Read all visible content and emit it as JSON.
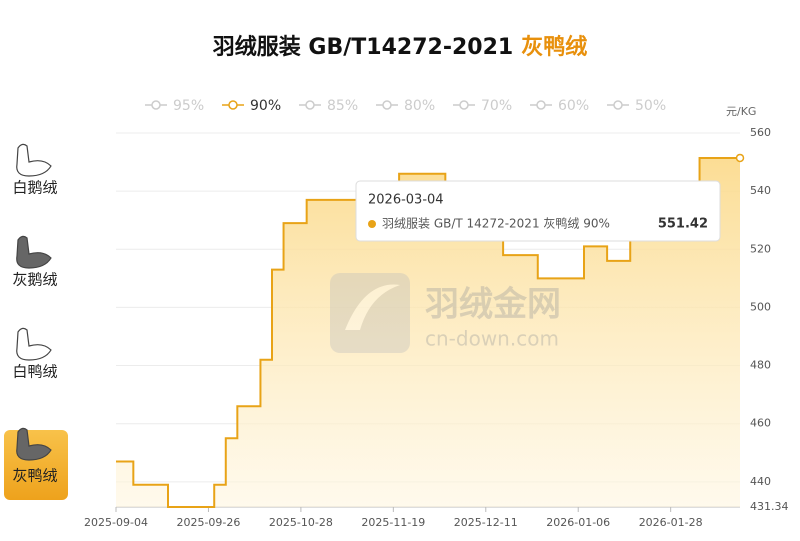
{
  "chart_data": {
    "type": "step",
    "title": "羽绒服装 GB/T14272-2021",
    "title_highlight": "灰鸭绒",
    "y_unit": "元/KG",
    "legend": [
      {
        "name": "95%",
        "active": false
      },
      {
        "name": "90%",
        "active": true
      },
      {
        "name": "85%",
        "active": false
      },
      {
        "name": "80%",
        "active": false
      },
      {
        "name": "70%",
        "active": false
      },
      {
        "name": "60%",
        "active": false
      },
      {
        "name": "50%",
        "active": false
      }
    ],
    "color": "#e8a317",
    "inactive_color": "#cccccc",
    "categories": [
      "2025-09-04",
      null,
      null,
      null,
      null,
      null,
      null,
      null,
      "2025-09-26",
      null,
      null,
      null,
      null,
      null,
      null,
      null,
      "2025-10-28",
      null,
      null,
      null,
      null,
      null,
      null,
      null,
      "2025-11-19",
      null,
      null,
      null,
      null,
      null,
      null,
      null,
      "2025-12-11",
      null,
      null,
      null,
      null,
      null,
      null,
      null,
      "2026-01-06",
      null,
      null,
      null,
      null,
      null,
      null,
      null,
      "2026-01-28",
      null,
      null,
      null,
      null,
      null,
      null
    ],
    "values": [
      447,
      447,
      439,
      439,
      439,
      431.34,
      431.34,
      431.34,
      431.34,
      439,
      455,
      466,
      466,
      482,
      513,
      529,
      529,
      537,
      537,
      537,
      537,
      537,
      537,
      537,
      537,
      546,
      546,
      546,
      546,
      542,
      542,
      542,
      533,
      533,
      518,
      518,
      518,
      510,
      510,
      510,
      510,
      521,
      521,
      516,
      516,
      524,
      524,
      524,
      524,
      540,
      540,
      551.42,
      551.42,
      551.42,
      551.42
    ],
    "ylim": [
      431.34,
      560
    ],
    "yticks": [
      431.34,
      440,
      460,
      480,
      500,
      520,
      540,
      560
    ],
    "grid": true,
    "tooltip": {
      "date": "2026-03-04",
      "series_label": "羽绒服装 GB/T 14272-2021 灰鸭绒 90%",
      "value": 551.42
    },
    "watermark": {
      "name": "羽绒金网",
      "url": "cn-down.com"
    }
  },
  "sidebar": [
    {
      "label": "白鹅绒",
      "active": false
    },
    {
      "label": "灰鹅绒",
      "active": false
    },
    {
      "label": "白鸭绒",
      "active": false
    },
    {
      "label": "灰鸭绒",
      "active": true
    }
  ]
}
